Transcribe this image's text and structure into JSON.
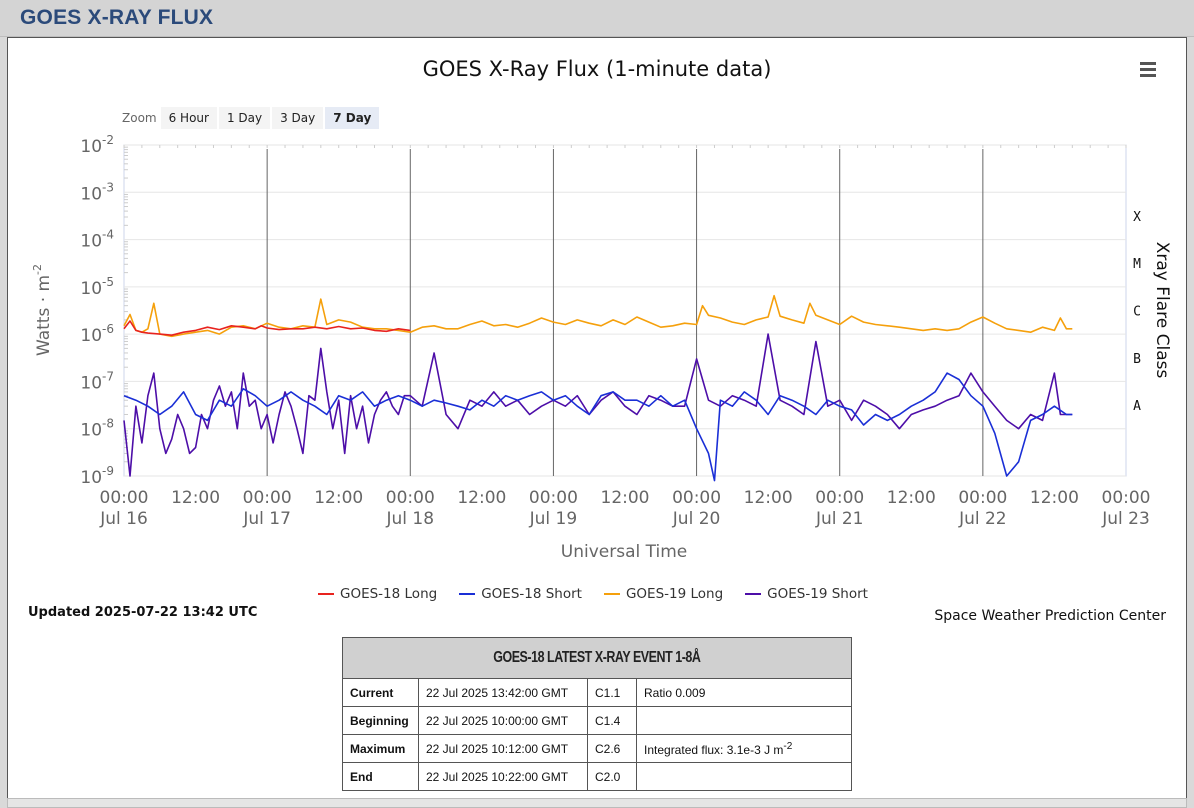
{
  "header": {
    "title": "GOES X-RAY FLUX"
  },
  "zoom": {
    "label": "Zoom",
    "buttons": [
      "6 Hour",
      "1 Day",
      "3 Day",
      "7 Day"
    ],
    "active": "7 Day"
  },
  "updated": "Updated 2025-07-22 13:42 UTC",
  "credit": "Space Weather Prediction Center",
  "chart_data": {
    "type": "line",
    "title": "GOES X-Ray Flux (1-minute data)",
    "xlabel": "Universal Time",
    "ylabel": "Watts · m",
    "ylabel_sup": "-2",
    "y2label": "Xray Flare Class",
    "yscale": "log",
    "ylim": [
      1e-09,
      0.01
    ],
    "y_tick_exponents": [
      -2,
      -3,
      -4,
      -5,
      -6,
      -7,
      -8,
      -9
    ],
    "x_range_hours": [
      0,
      168
    ],
    "x_ticks": [
      {
        "h": 0,
        "time": "00:00",
        "date": "Jul 16"
      },
      {
        "h": 12,
        "time": "12:00",
        "date": ""
      },
      {
        "h": 24,
        "time": "00:00",
        "date": "Jul 17"
      },
      {
        "h": 36,
        "time": "12:00",
        "date": ""
      },
      {
        "h": 48,
        "time": "00:00",
        "date": "Jul 18"
      },
      {
        "h": 60,
        "time": "12:00",
        "date": ""
      },
      {
        "h": 72,
        "time": "00:00",
        "date": "Jul 19"
      },
      {
        "h": 84,
        "time": "12:00",
        "date": ""
      },
      {
        "h": 96,
        "time": "00:00",
        "date": "Jul 20"
      },
      {
        "h": 108,
        "time": "12:00",
        "date": ""
      },
      {
        "h": 120,
        "time": "00:00",
        "date": "Jul 21"
      },
      {
        "h": 132,
        "time": "12:00",
        "date": ""
      },
      {
        "h": 144,
        "time": "00:00",
        "date": "Jul 22"
      },
      {
        "h": 156,
        "time": "12:00",
        "date": ""
      },
      {
        "h": 168,
        "time": "00:00",
        "date": "Jul 23"
      }
    ],
    "flare_classes": [
      {
        "label": "X",
        "value": 0.0001
      },
      {
        "label": "M",
        "value": 1e-05
      },
      {
        "label": "C",
        "value": 1e-06
      },
      {
        "label": "B",
        "value": 1e-07
      },
      {
        "label": "A",
        "value": 1e-08
      }
    ],
    "series": [
      {
        "name": "GOES-18 Long",
        "color": "#e8231e",
        "key": "g18long",
        "x": [
          0,
          1,
          2,
          3,
          4,
          6,
          8,
          10,
          12,
          14,
          16,
          18,
          20,
          22,
          23,
          24,
          26,
          28,
          30,
          32,
          34,
          36,
          38,
          40,
          42,
          44,
          46,
          48
        ],
        "values": [
          1.3e-06,
          1.9e-06,
          1.2e-06,
          1.1e-06,
          1.05e-06,
          1e-06,
          9.5e-07,
          1.1e-06,
          1.2e-06,
          1.4e-06,
          1.25e-06,
          1.5e-06,
          1.4e-06,
          1.3e-06,
          1.5e-06,
          1.35e-06,
          1.25e-06,
          1.3e-06,
          1.3e-06,
          1.4e-06,
          1.3e-06,
          1.45e-06,
          1.3e-06,
          1.35e-06,
          1.2e-06,
          1.15e-06,
          1.3e-06,
          1.2e-06
        ]
      },
      {
        "name": "GOES-18 Short",
        "color": "#1a2fd6",
        "key": "g18short",
        "x": [
          0,
          2,
          4,
          6,
          8,
          10,
          12,
          14,
          16,
          18,
          20,
          22,
          24,
          26,
          28,
          30,
          32,
          34,
          36,
          38,
          40,
          42,
          44,
          46,
          48,
          50,
          52,
          54,
          56,
          58,
          60,
          62,
          64,
          66,
          68,
          70,
          72,
          74,
          76,
          78,
          80,
          82,
          84,
          86,
          88,
          90,
          92,
          94,
          96,
          98,
          99,
          100,
          102,
          104,
          106,
          108,
          110,
          112,
          114,
          116,
          118,
          120,
          122,
          124,
          126,
          128,
          130,
          132,
          134,
          136,
          138,
          140,
          142,
          144,
          146,
          148,
          150,
          152,
          154,
          156,
          158,
          159
        ],
        "values": [
          5e-08,
          4e-08,
          3e-08,
          2e-08,
          3e-08,
          6e-08,
          2e-08,
          1.5e-08,
          4e-08,
          3e-08,
          7e-08,
          5e-08,
          3e-08,
          4e-08,
          6e-08,
          4e-08,
          3e-08,
          2e-08,
          5e-08,
          4e-08,
          6e-08,
          3e-08,
          4e-08,
          5e-08,
          4e-08,
          3e-08,
          4e-08,
          3.5e-08,
          3e-08,
          2.5e-08,
          4e-08,
          3e-08,
          5e-08,
          4e-08,
          5e-08,
          6e-08,
          4e-08,
          5e-08,
          3e-08,
          2e-08,
          5e-08,
          6e-08,
          4e-08,
          4e-08,
          3e-08,
          5e-08,
          3e-08,
          4e-08,
          1e-08,
          3e-09,
          8e-10,
          4e-08,
          3e-08,
          6e-08,
          4e-08,
          2e-08,
          5e-08,
          4e-08,
          3e-08,
          2e-08,
          4e-08,
          3e-08,
          2.5e-08,
          1.2e-08,
          2e-08,
          1.5e-08,
          2e-08,
          3e-08,
          4e-08,
          6e-08,
          1.5e-07,
          1.1e-07,
          5e-08,
          3e-08,
          8e-09,
          1e-09,
          2e-09,
          1.5e-08,
          2e-08,
          3e-08,
          2e-08,
          2e-08
        ]
      },
      {
        "name": "GOES-19 Long",
        "color": "#f5a00c",
        "key": "g19long",
        "x": [
          0,
          1,
          2,
          3,
          4,
          5,
          6,
          8,
          10,
          12,
          14,
          16,
          18,
          20,
          22,
          24,
          26,
          28,
          30,
          32,
          33,
          34,
          36,
          38,
          40,
          42,
          44,
          46,
          48,
          50,
          52,
          54,
          56,
          58,
          60,
          62,
          64,
          66,
          68,
          70,
          72,
          74,
          76,
          78,
          80,
          82,
          84,
          86,
          88,
          90,
          92,
          94,
          96,
          97,
          98,
          100,
          102,
          104,
          106,
          108,
          109,
          110,
          112,
          114,
          115,
          116,
          118,
          120,
          122,
          124,
          126,
          128,
          130,
          132,
          134,
          136,
          138,
          140,
          142,
          144,
          146,
          148,
          150,
          152,
          154,
          156,
          157,
          158,
          159
        ],
        "values": [
          1.5e-06,
          2.6e-06,
          1.2e-06,
          1.1e-06,
          1.3e-06,
          4.5e-06,
          1e-06,
          9e-07,
          1e-06,
          1.1e-06,
          1.2e-06,
          1e-06,
          1.4e-06,
          1.5e-06,
          1.3e-06,
          1.7e-06,
          1.4e-06,
          1.3e-06,
          1.5e-06,
          1.4e-06,
          5.5e-06,
          1.6e-06,
          2e-06,
          1.8e-06,
          1.4e-06,
          1.3e-06,
          1.3e-06,
          1.2e-06,
          1.1e-06,
          1.4e-06,
          1.5e-06,
          1.3e-06,
          1.3e-06,
          1.6e-06,
          1.9e-06,
          1.5e-06,
          1.6e-06,
          1.4e-06,
          1.7e-06,
          2.2e-06,
          1.8e-06,
          1.6e-06,
          2e-06,
          1.7e-06,
          1.5e-06,
          2e-06,
          1.6e-06,
          2.3e-06,
          1.8e-06,
          1.4e-06,
          1.5e-06,
          1.7e-06,
          1.6e-06,
          4e-06,
          2.5e-06,
          2.2e-06,
          1.8e-06,
          1.6e-06,
          2e-06,
          2.3e-06,
          6.5e-06,
          2.4e-06,
          2e-06,
          1.7e-06,
          4.5e-06,
          2.5e-06,
          2e-06,
          1.6e-06,
          2.4e-06,
          1.8e-06,
          1.6e-06,
          1.5e-06,
          1.4e-06,
          1.3e-06,
          1.2e-06,
          1.3e-06,
          1.2e-06,
          1.3e-06,
          1.8e-06,
          2.3e-06,
          1.7e-06,
          1.3e-06,
          1.2e-06,
          1.1e-06,
          1.4e-06,
          1.2e-06,
          2.2e-06,
          1.3e-06,
          1.3e-06
        ]
      },
      {
        "name": "GOES-19 Short",
        "color": "#4d0ea8",
        "key": "g19short",
        "x": [
          0,
          1,
          2,
          3,
          4,
          5,
          6,
          7,
          8,
          9,
          10,
          11,
          12,
          13,
          14,
          15,
          16,
          17,
          18,
          19,
          20,
          21,
          22,
          23,
          24,
          25,
          26,
          27,
          28,
          29,
          30,
          31,
          32,
          33,
          34,
          35,
          36,
          37,
          38,
          39,
          40,
          41,
          42,
          43,
          44,
          45,
          46,
          47,
          48,
          50,
          52,
          54,
          56,
          58,
          60,
          62,
          64,
          66,
          68,
          70,
          72,
          74,
          76,
          78,
          80,
          82,
          84,
          86,
          88,
          90,
          92,
          94,
          96,
          98,
          100,
          102,
          104,
          106,
          108,
          110,
          112,
          114,
          116,
          118,
          120,
          122,
          124,
          126,
          128,
          130,
          132,
          134,
          136,
          138,
          140,
          142,
          144,
          146,
          148,
          150,
          152,
          154,
          156,
          157,
          158,
          159
        ],
        "values": [
          1.5e-08,
          1e-09,
          3e-08,
          5e-09,
          5e-08,
          1.5e-07,
          1e-08,
          3e-09,
          6e-09,
          2e-08,
          1e-08,
          3e-09,
          4e-09,
          2e-08,
          1e-08,
          4e-08,
          8e-08,
          3e-08,
          6e-08,
          1e-08,
          1.5e-07,
          3e-08,
          4e-08,
          1e-08,
          2e-08,
          5e-09,
          2e-08,
          6e-08,
          3e-08,
          1e-08,
          3e-09,
          5e-08,
          4e-08,
          5e-07,
          6e-08,
          1e-08,
          4e-08,
          3e-09,
          5e-08,
          1e-08,
          3e-08,
          5e-09,
          2e-08,
          4e-08,
          6e-08,
          3e-08,
          2e-08,
          5e-08,
          5e-08,
          3e-08,
          4e-07,
          2e-08,
          1e-08,
          4e-08,
          3e-08,
          6e-08,
          3e-08,
          4e-08,
          2e-08,
          3e-08,
          4e-08,
          3e-08,
          5e-08,
          2e-08,
          4e-08,
          6e-08,
          3e-08,
          2e-08,
          5e-08,
          4e-08,
          3e-08,
          3e-08,
          3e-07,
          4e-08,
          3e-08,
          5e-08,
          4e-08,
          3e-08,
          1e-06,
          4e-08,
          3e-08,
          2e-08,
          7e-07,
          3e-08,
          4e-08,
          1.5e-08,
          4e-08,
          3e-08,
          2e-08,
          1e-08,
          2e-08,
          2.5e-08,
          3e-08,
          4e-08,
          5e-08,
          1.5e-07,
          6e-08,
          3e-08,
          1.5e-08,
          1e-08,
          2e-08,
          1.5e-08,
          1.5e-07,
          2e-08,
          2e-08,
          2e-08
        ]
      }
    ]
  },
  "event_table": {
    "title": "GOES-18 LATEST X-RAY EVENT 1-8Å",
    "rows": [
      {
        "label": "Current",
        "time": "22 Jul 2025 13:42:00 GMT",
        "cls": "C1.1",
        "extra": "Ratio 0.009",
        "extra_sup": ""
      },
      {
        "label": "Beginning",
        "time": "22 Jul 2025 10:00:00 GMT",
        "cls": "C1.4",
        "extra": "",
        "extra_sup": ""
      },
      {
        "label": "Maximum",
        "time": "22 Jul 2025 10:12:00 GMT",
        "cls": "C2.6",
        "extra": "Integrated flux: 3.1e-3 J m",
        "extra_sup": "-2"
      },
      {
        "label": "End",
        "time": "22 Jul 2025 10:22:00 GMT",
        "cls": "C2.0",
        "extra": "",
        "extra_sup": ""
      }
    ]
  }
}
